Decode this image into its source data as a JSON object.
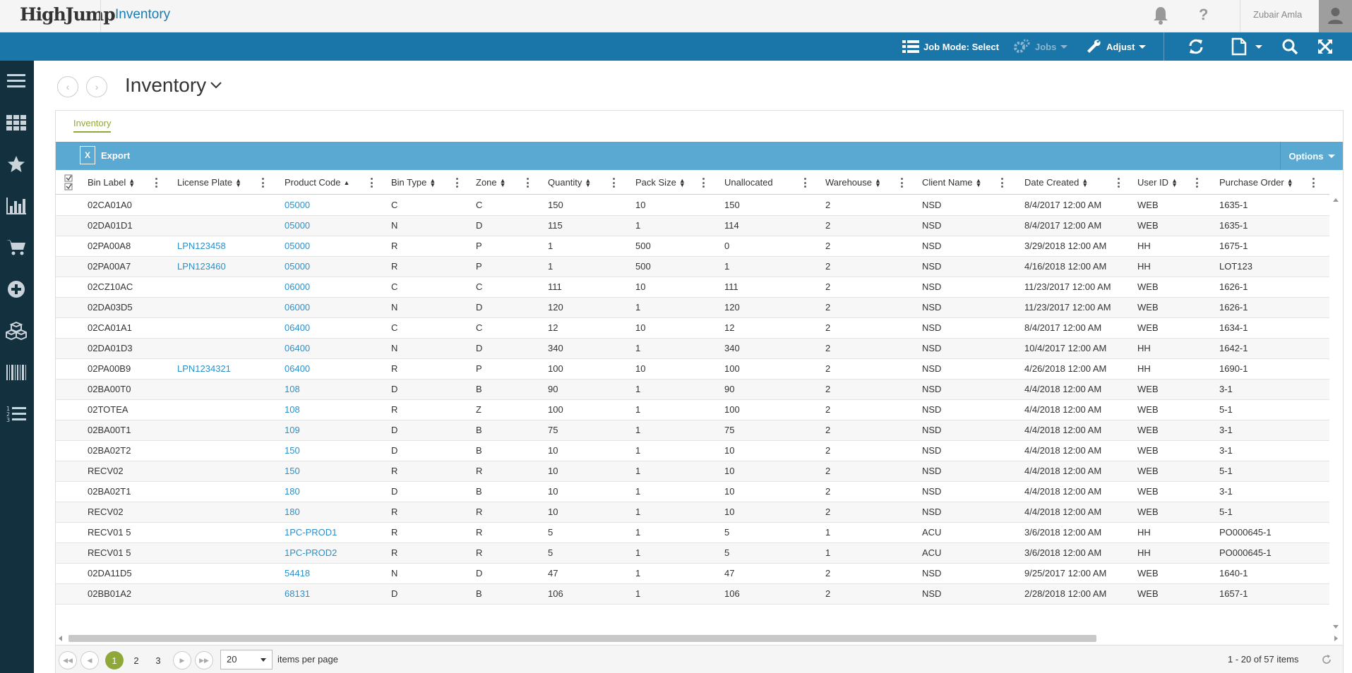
{
  "app": {
    "logo": "HighJump",
    "title": "Inventory"
  },
  "header": {
    "help_label": "?",
    "user_name": "Zubair Amla"
  },
  "toolbar": {
    "job_mode_label": "Job Mode: Select",
    "jobs_label": "Jobs",
    "adjust_label": "Adjust"
  },
  "page": {
    "title": "Inventory",
    "tab_label": "Inventory"
  },
  "grid_toolbar": {
    "export_label": "Export",
    "options_label": "Options"
  },
  "columns": [
    {
      "label": "Bin Label",
      "sort": "both"
    },
    {
      "label": "License Plate",
      "sort": "both"
    },
    {
      "label": "Product Code",
      "sort": "asc"
    },
    {
      "label": "Bin Type",
      "sort": "both"
    },
    {
      "label": "Zone",
      "sort": "both"
    },
    {
      "label": "Quantity",
      "sort": "both"
    },
    {
      "label": "Pack Size",
      "sort": "both"
    },
    {
      "label": "Unallocated",
      "sort": "none"
    },
    {
      "label": "Warehouse",
      "sort": "both"
    },
    {
      "label": "Client Name",
      "sort": "both"
    },
    {
      "label": "Date Created",
      "sort": "both"
    },
    {
      "label": "User ID",
      "sort": "both"
    },
    {
      "label": "Purchase Order",
      "sort": "both"
    }
  ],
  "rows": [
    [
      "02CA01A0",
      "",
      "05000",
      "C",
      "C",
      "150",
      "10",
      "150",
      "2",
      "NSD",
      "8/4/2017 12:00 AM",
      "WEB",
      "1635-1"
    ],
    [
      "02DA01D1",
      "",
      "05000",
      "N",
      "D",
      "115",
      "1",
      "114",
      "2",
      "NSD",
      "8/4/2017 12:00 AM",
      "WEB",
      "1635-1"
    ],
    [
      "02PA00A8",
      "LPN123458",
      "05000",
      "R",
      "P",
      "1",
      "500",
      "0",
      "2",
      "NSD",
      "3/29/2018 12:00 AM",
      "HH",
      "1675-1"
    ],
    [
      "02PA00A7",
      "LPN123460",
      "05000",
      "R",
      "P",
      "1",
      "500",
      "1",
      "2",
      "NSD",
      "4/16/2018 12:00 AM",
      "HH",
      "LOT123"
    ],
    [
      "02CZ10AC",
      "",
      "06000",
      "C",
      "C",
      "111",
      "10",
      "111",
      "2",
      "NSD",
      "11/23/2017 12:00 AM",
      "WEB",
      "1626-1"
    ],
    [
      "02DA03D5",
      "",
      "06000",
      "N",
      "D",
      "120",
      "1",
      "120",
      "2",
      "NSD",
      "11/23/2017 12:00 AM",
      "WEB",
      "1626-1"
    ],
    [
      "02CA01A1",
      "",
      "06400",
      "C",
      "C",
      "12",
      "10",
      "12",
      "2",
      "NSD",
      "8/4/2017 12:00 AM",
      "WEB",
      "1634-1"
    ],
    [
      "02DA01D3",
      "",
      "06400",
      "N",
      "D",
      "340",
      "1",
      "340",
      "2",
      "NSD",
      "10/4/2017 12:00 AM",
      "HH",
      "1642-1"
    ],
    [
      "02PA00B9",
      "LPN1234321",
      "06400",
      "R",
      "P",
      "100",
      "10",
      "100",
      "2",
      "NSD",
      "4/26/2018 12:00 AM",
      "HH",
      "1690-1"
    ],
    [
      "02BA00T0",
      "",
      "108",
      "D",
      "B",
      "90",
      "1",
      "90",
      "2",
      "NSD",
      "4/4/2018 12:00 AM",
      "WEB",
      "3-1"
    ],
    [
      "02TOTEA",
      "",
      "108",
      "R",
      "Z",
      "100",
      "1",
      "100",
      "2",
      "NSD",
      "4/4/2018 12:00 AM",
      "WEB",
      "5-1"
    ],
    [
      "02BA00T1",
      "",
      "109",
      "D",
      "B",
      "75",
      "1",
      "75",
      "2",
      "NSD",
      "4/4/2018 12:00 AM",
      "WEB",
      "3-1"
    ],
    [
      "02BA02T2",
      "",
      "150",
      "D",
      "B",
      "10",
      "1",
      "10",
      "2",
      "NSD",
      "4/4/2018 12:00 AM",
      "WEB",
      "3-1"
    ],
    [
      "RECV02",
      "",
      "150",
      "R",
      "R",
      "10",
      "1",
      "10",
      "2",
      "NSD",
      "4/4/2018 12:00 AM",
      "WEB",
      "5-1"
    ],
    [
      "02BA02T1",
      "",
      "180",
      "D",
      "B",
      "10",
      "1",
      "10",
      "2",
      "NSD",
      "4/4/2018 12:00 AM",
      "WEB",
      "3-1"
    ],
    [
      "RECV02",
      "",
      "180",
      "R",
      "R",
      "10",
      "1",
      "10",
      "2",
      "NSD",
      "4/4/2018 12:00 AM",
      "WEB",
      "5-1"
    ],
    [
      "RECV01 5",
      "",
      "1PC-PROD1",
      "R",
      "R",
      "5",
      "1",
      "5",
      "1",
      "ACU",
      "3/6/2018 12:00 AM",
      "HH",
      "PO000645-1"
    ],
    [
      "RECV01 5",
      "",
      "1PC-PROD2",
      "R",
      "R",
      "5",
      "1",
      "5",
      "1",
      "ACU",
      "3/6/2018 12:00 AM",
      "HH",
      "PO000645-1"
    ],
    [
      "02DA11D5",
      "",
      "54418",
      "N",
      "D",
      "47",
      "1",
      "47",
      "2",
      "NSD",
      "9/25/2017 12:00 AM",
      "WEB",
      "1640-1"
    ],
    [
      "02BB01A2",
      "",
      "68131",
      "D",
      "B",
      "106",
      "1",
      "106",
      "2",
      "NSD",
      "2/28/2018 12:00 AM",
      "WEB",
      "1657-1"
    ]
  ],
  "pager": {
    "pages": [
      "1",
      "2",
      "3"
    ],
    "current_page": "1",
    "page_size": "20",
    "items_per_page_label": "items per page",
    "info": "1 - 20 of 57 items"
  },
  "sidebar": {
    "items": [
      "menu-icon",
      "apps-grid-icon",
      "star-icon",
      "bar-chart-icon",
      "cart-icon",
      "add-circle-icon",
      "boxes-icon",
      "barcode-icon",
      "numbered-list-icon"
    ]
  },
  "colors": {
    "accent": "#1a76a8",
    "link": "#2d8fc7",
    "active_tab": "#8fa83a",
    "sidebar": "#13303f",
    "grid_toolbar": "#5aa9d3"
  }
}
